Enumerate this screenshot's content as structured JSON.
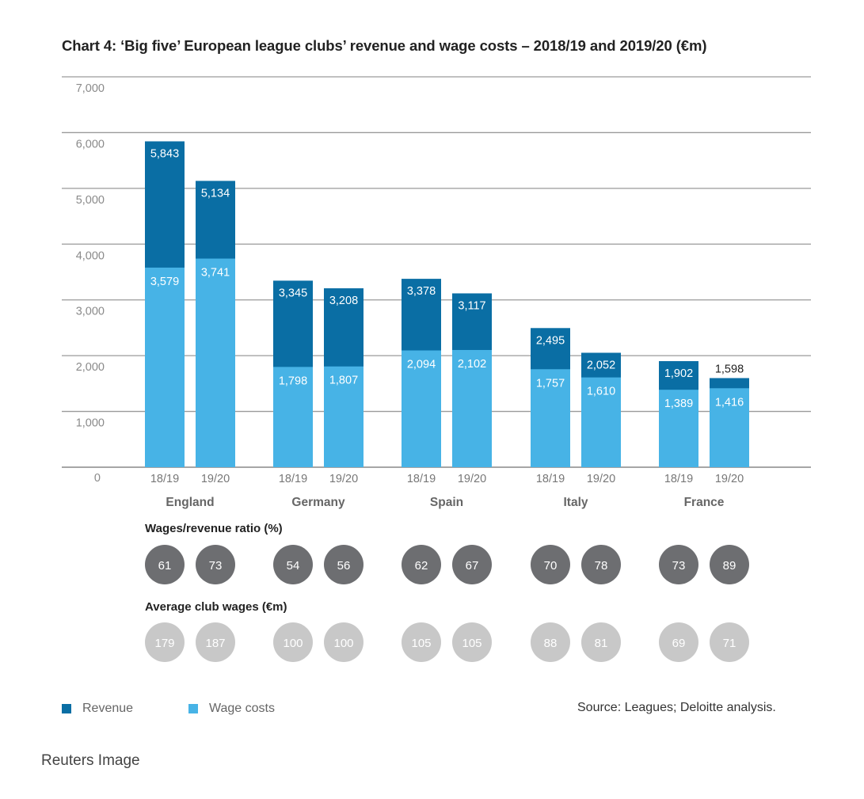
{
  "chart_data": {
    "type": "bar",
    "stacked": "overlay",
    "title": "Chart 4: ‘Big five’ European league clubs’ revenue and wage costs – 2018/19 and 2019/20 (€m)",
    "ylim": [
      0,
      7000
    ],
    "yticks": [
      "0",
      "1,000",
      "2,000",
      "3,000",
      "4,000",
      "5,000",
      "6,000",
      "7,000"
    ],
    "grid": true,
    "leagues": [
      "England",
      "Germany",
      "Spain",
      "Italy",
      "France"
    ],
    "seasons": [
      "18/19",
      "19/20"
    ],
    "series": [
      {
        "name": "Revenue",
        "color": "#0a6ea4",
        "values": [
          5843,
          5134,
          3345,
          3208,
          3378,
          3117,
          2495,
          2052,
          1902,
          1598
        ],
        "labels": [
          "5,843",
          "5,134",
          "3,345",
          "3,208",
          "3,378",
          "3,117",
          "2,495",
          "2,052",
          "1,902",
          "1,598"
        ]
      },
      {
        "name": "Wage costs",
        "color": "#47b3e6",
        "values": [
          3579,
          3741,
          1798,
          1807,
          2094,
          2102,
          1757,
          1610,
          1389,
          1416
        ],
        "labels": [
          "3,579",
          "3,741",
          "1,798",
          "1,807",
          "2,094",
          "2,102",
          "1,757",
          "1,610",
          "1,389",
          "1,416"
        ]
      }
    ],
    "ratio_section": {
      "title": "Wages/revenue ratio (%)",
      "color": "#6d6e71",
      "values": [
        "61",
        "73",
        "54",
        "56",
        "62",
        "67",
        "70",
        "78",
        "73",
        "89"
      ]
    },
    "avg_wages_section": {
      "title": "Average club wages (€m)",
      "color": "#c8c8c8",
      "values": [
        "179",
        "187",
        "100",
        "100",
        "105",
        "105",
        "88",
        "81",
        "69",
        "71"
      ]
    },
    "legend": [
      "Revenue",
      "Wage costs"
    ],
    "source": "Source: Leagues; Deloitte analysis."
  },
  "caption": "Reuters Image"
}
